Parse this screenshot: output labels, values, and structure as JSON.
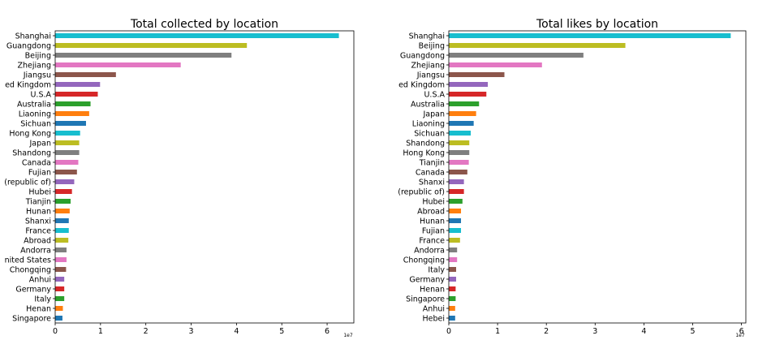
{
  "chart_data": [
    {
      "type": "bar",
      "orientation": "horizontal",
      "title": "Total collected by location",
      "xlabel": "",
      "ylabel": "",
      "xlim": [
        0,
        6.59
      ],
      "x_ticks": [
        "0",
        "1",
        "2",
        "3",
        "4",
        "5",
        "6"
      ],
      "x_scale_label": "1e7",
      "grid": false,
      "categories": [
        "Shanghai",
        "Guangdong",
        "Beijing",
        "Zhejiang",
        "Jiangsu",
        "ed Kingdom",
        "U.S.A",
        "Australia",
        "Liaoning",
        "Sichuan",
        "Hong Kong",
        "Japan",
        "Shandong",
        "Canada",
        "Fujian",
        "(republic of)",
        "Hubei",
        "Tianjin",
        "Hunan",
        "Shanxi",
        "France",
        "Abroad",
        "Andorra",
        "nited States",
        "Chongqing",
        "Anhui",
        "Germany",
        "Italy",
        "Henan",
        "Singapore"
      ],
      "values": [
        6.26,
        4.23,
        3.89,
        2.77,
        1.34,
        0.99,
        0.94,
        0.78,
        0.75,
        0.68,
        0.55,
        0.53,
        0.53,
        0.51,
        0.48,
        0.42,
        0.37,
        0.34,
        0.32,
        0.3,
        0.3,
        0.29,
        0.25,
        0.25,
        0.24,
        0.2,
        0.2,
        0.2,
        0.17,
        0.16
      ]
    },
    {
      "type": "bar",
      "orientation": "horizontal",
      "title": "Total likes by location",
      "xlabel": "",
      "ylabel": "",
      "xlim": [
        0,
        6.09
      ],
      "x_ticks": [
        "0",
        "1",
        "2",
        "3",
        "4",
        "5",
        "6"
      ],
      "x_scale_label": "1e7",
      "grid": false,
      "categories": [
        "Shanghai",
        "Beijing",
        "Guangdong",
        "Zhejiang",
        "Jiangsu",
        "ed Kingdom",
        "U.S.A",
        "Australia",
        "Japan",
        "Liaoning",
        "Sichuan",
        "Shandong",
        "Hong Kong",
        "Tianjin",
        "Canada",
        "Shanxi",
        "(republic of)",
        "Hubei",
        "Abroad",
        "Hunan",
        "Fujian",
        "France",
        "Andorra",
        "Chongqing",
        "Italy",
        "Germany",
        "Henan",
        "Singapore",
        "Anhui",
        "Hebei"
      ],
      "values": [
        5.78,
        3.62,
        2.76,
        1.91,
        1.14,
        0.8,
        0.77,
        0.62,
        0.56,
        0.51,
        0.45,
        0.42,
        0.42,
        0.41,
        0.38,
        0.31,
        0.31,
        0.28,
        0.25,
        0.25,
        0.25,
        0.23,
        0.17,
        0.17,
        0.15,
        0.15,
        0.14,
        0.14,
        0.13,
        0.13
      ]
    }
  ],
  "colors": [
    "#1f77b4",
    "#ff7f0e",
    "#2ca02c",
    "#d62728",
    "#9467bd",
    "#8c564b",
    "#e377c2",
    "#7f7f7f",
    "#bcbd22",
    "#17becf"
  ]
}
